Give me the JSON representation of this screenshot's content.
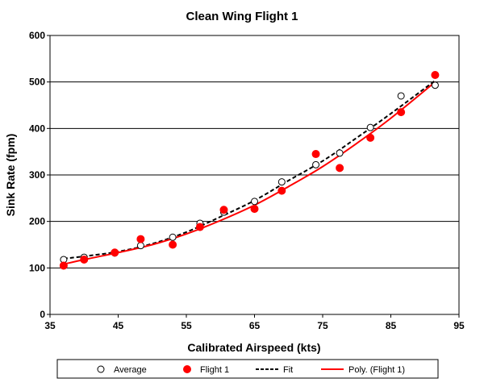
{
  "chart_data": {
    "type": "scatter",
    "title": "Clean Wing Flight 1",
    "xlabel": "Calibrated Airspeed (kts)",
    "ylabel": "Sink Rate (fpm)",
    "xlim": [
      35,
      95
    ],
    "ylim": [
      0,
      600
    ],
    "xticks": [
      35,
      45,
      55,
      65,
      75,
      85,
      95
    ],
    "yticks": [
      0,
      100,
      200,
      300,
      400,
      500,
      600
    ],
    "grid": "horizontal",
    "legend": "bottom",
    "series": [
      {
        "name": "Average",
        "kind": "points",
        "marker": "open-circle",
        "color": "#000000",
        "x": [
          37,
          40,
          44.5,
          48.3,
          53,
          57,
          60.5,
          65,
          69,
          74,
          77.5,
          82,
          86.5,
          91.5
        ],
        "y": [
          118,
          123,
          132,
          148,
          166,
          196,
          220,
          243,
          285,
          322,
          347,
          402,
          470,
          493
        ]
      },
      {
        "name": "Flight 1",
        "kind": "points",
        "marker": "filled-circle",
        "color": "#ff0000",
        "x": [
          37,
          40,
          44.5,
          48.3,
          53,
          57,
          60.5,
          65,
          69,
          74,
          77.5,
          82,
          86.5,
          91.5
        ],
        "y": [
          105,
          118,
          133,
          162,
          150,
          188,
          225,
          227,
          266,
          345,
          315,
          380,
          435,
          515
        ]
      },
      {
        "name": "Fit",
        "kind": "curve",
        "dash": "dashed",
        "color": "#000000",
        "x": [
          37,
          40,
          45,
          50,
          55,
          60,
          65,
          70,
          75,
          80,
          85,
          91.5
        ],
        "y": [
          120,
          125,
          135,
          152,
          177,
          210,
          245,
          288,
          330,
          380,
          432,
          503
        ]
      },
      {
        "name": "Poly. (Flight 1)",
        "kind": "curve",
        "dash": "solid",
        "color": "#ff0000",
        "x": [
          37,
          40,
          45,
          50,
          55,
          60,
          65,
          70,
          75,
          80,
          85,
          91.5
        ],
        "y": [
          108,
          118,
          133,
          150,
          173,
          202,
          235,
          275,
          318,
          368,
          422,
          500
        ]
      }
    ]
  }
}
